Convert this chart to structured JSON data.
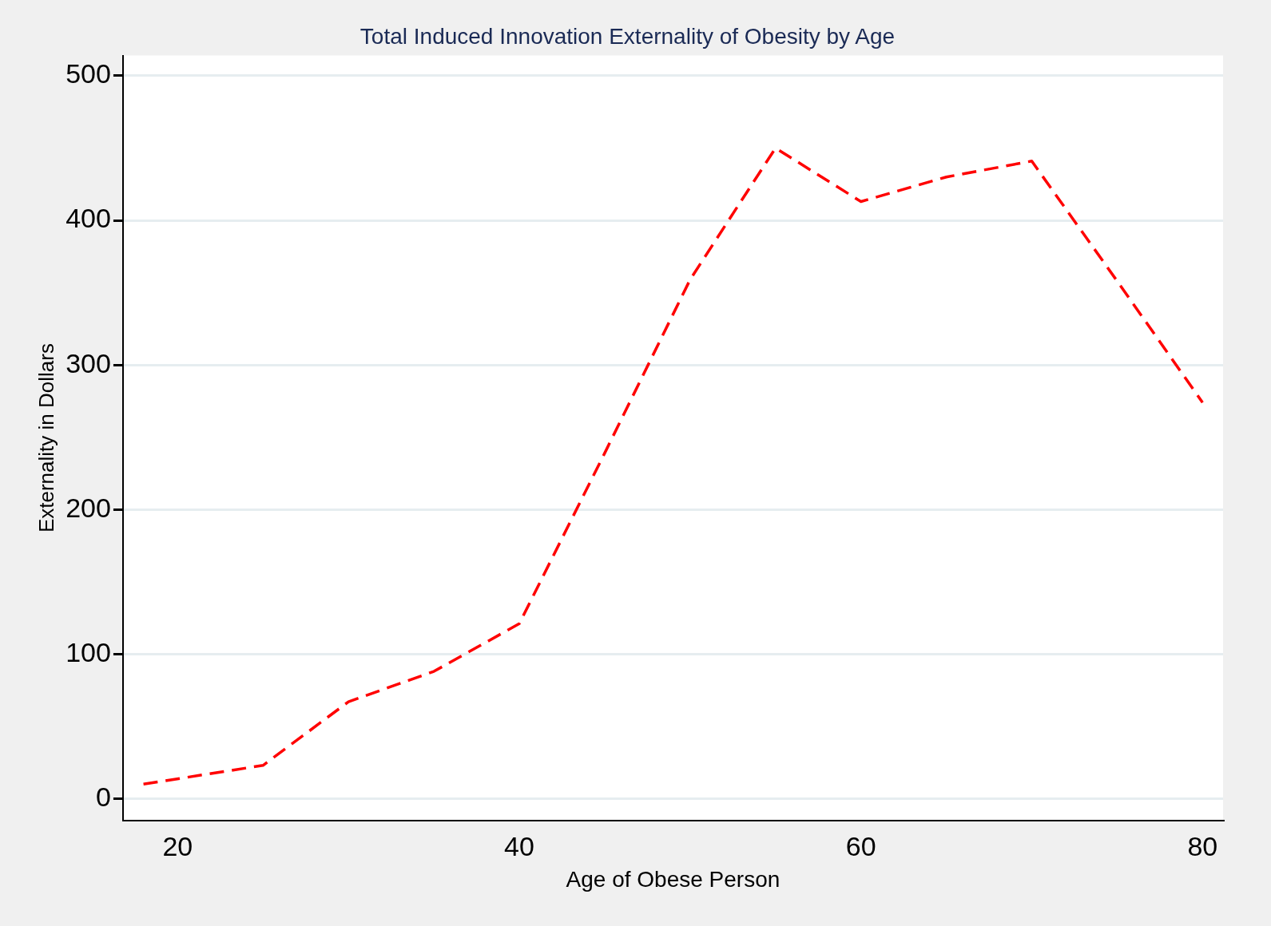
{
  "chart_data": {
    "type": "line",
    "title": "Total Induced Innovation Externality of Obesity by Age",
    "xlabel": "Age of Obese Person",
    "ylabel": "Externality in Dollars",
    "x": [
      18,
      25,
      30,
      35,
      40,
      45,
      50,
      55,
      60,
      65,
      70,
      75,
      80
    ],
    "series": [
      {
        "color": "#ff0000",
        "values": [
          10,
          23,
          67,
          88,
          121,
          239,
          359,
          450,
          413,
          430,
          441,
          358,
          274
        ]
      }
    ],
    "xlim": [
      16.8,
      81.2
    ],
    "ylim": [
      -15,
      514
    ],
    "xticks": [
      20,
      40,
      60,
      80
    ],
    "yticks": [
      0,
      100,
      200,
      300,
      400,
      500
    ],
    "grid": "y",
    "legend": false,
    "marker": "none",
    "line_style": "dashed"
  }
}
